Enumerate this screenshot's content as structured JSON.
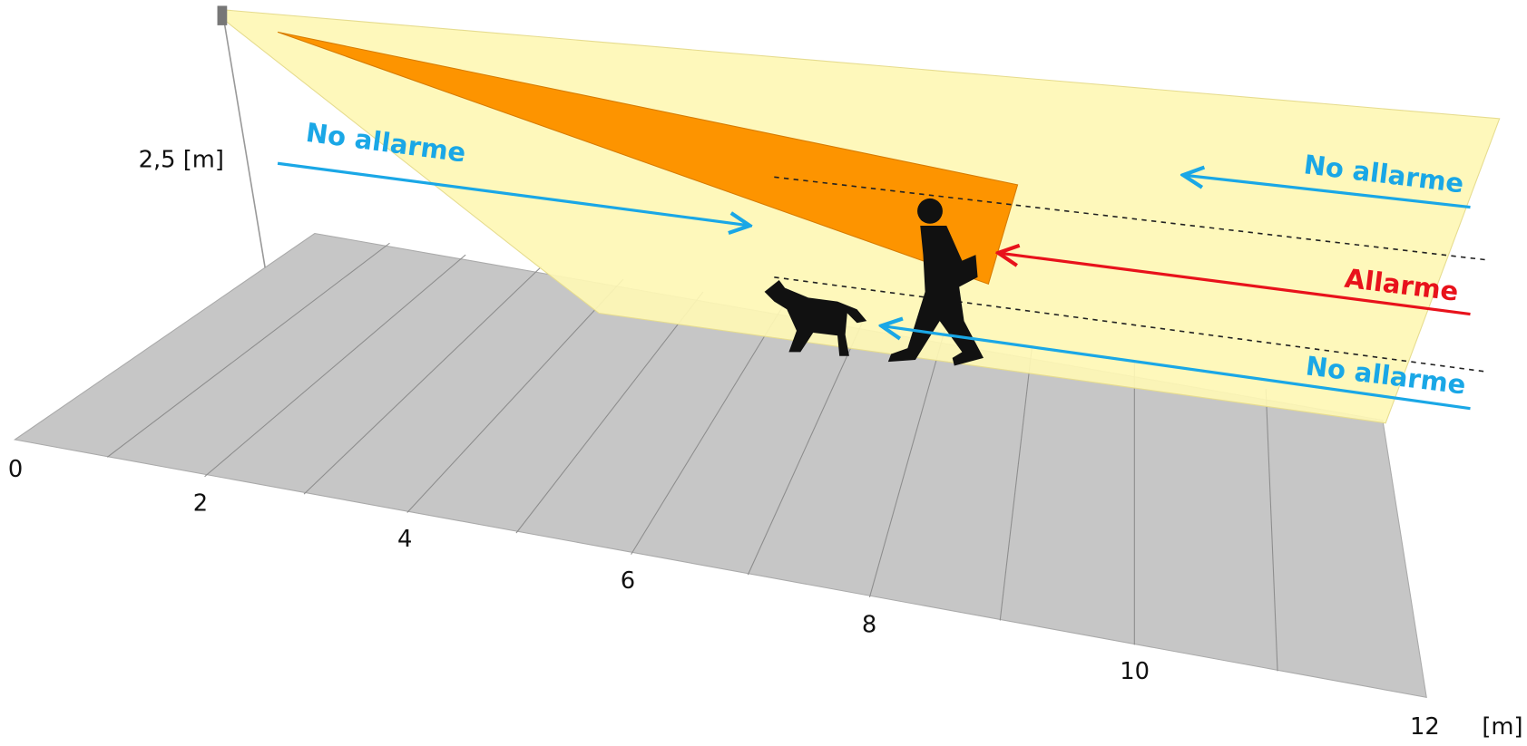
{
  "height_label": "2,5 [m]",
  "zones": [
    {
      "label": "No allarme"
    },
    {
      "label": "No allarme"
    },
    {
      "label": "Allarme"
    },
    {
      "label": "No allarme"
    }
  ],
  "axis": {
    "ticks": [
      "0",
      "2",
      "4",
      "6",
      "8",
      "10",
      "12"
    ],
    "unit": "[m]"
  }
}
